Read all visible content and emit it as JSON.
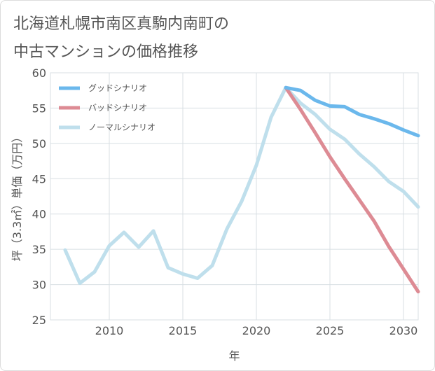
{
  "title_line1": "北海道札幌市南区真駒内南町の",
  "title_line2": "中古マンションの価格推移",
  "chart_data": {
    "type": "line",
    "xlabel": "年",
    "ylabel": "坪（3.3㎡）単価（万円）",
    "xlim": [
      2006,
      2031
    ],
    "ylim": [
      25,
      60
    ],
    "x_ticks": [
      2010,
      2015,
      2020,
      2025,
      2030
    ],
    "y_ticks": [
      25,
      30,
      35,
      40,
      45,
      50,
      55,
      60
    ],
    "grid": true,
    "legend_position": "top-left",
    "series": [
      {
        "name": "グッドシナリオ",
        "color": "#6bb8ec",
        "x": [
          2022,
          2023,
          2024,
          2025,
          2026,
          2027,
          2028,
          2029,
          2030,
          2031
        ],
        "y": [
          57.9,
          57.5,
          56.1,
          55.3,
          55.2,
          54.1,
          53.5,
          52.8,
          51.9,
          51.1
        ]
      },
      {
        "name": "バッドシナリオ",
        "color": "#dd8b94",
        "x": [
          2022,
          2023,
          2024,
          2025,
          2026,
          2027,
          2028,
          2029,
          2030,
          2031
        ],
        "y": [
          57.9,
          54.8,
          51.5,
          48.1,
          45.0,
          42.0,
          39.0,
          35.4,
          32.2,
          29.0
        ]
      },
      {
        "name": "ノーマルシナリオ",
        "color": "#bfdfec",
        "x": [
          2007,
          2008,
          2009,
          2010,
          2011,
          2012,
          2013,
          2014,
          2015,
          2016,
          2017,
          2018,
          2019,
          2020,
          2021,
          2022,
          2023,
          2024,
          2025,
          2026,
          2027,
          2028,
          2029,
          2030,
          2031
        ],
        "y": [
          34.9,
          30.2,
          31.8,
          35.5,
          37.4,
          35.3,
          37.6,
          32.4,
          31.5,
          30.9,
          32.7,
          37.9,
          41.8,
          46.9,
          53.7,
          57.9,
          55.7,
          54.1,
          52.0,
          50.6,
          48.5,
          46.7,
          44.6,
          43.2,
          41.0
        ]
      }
    ]
  }
}
